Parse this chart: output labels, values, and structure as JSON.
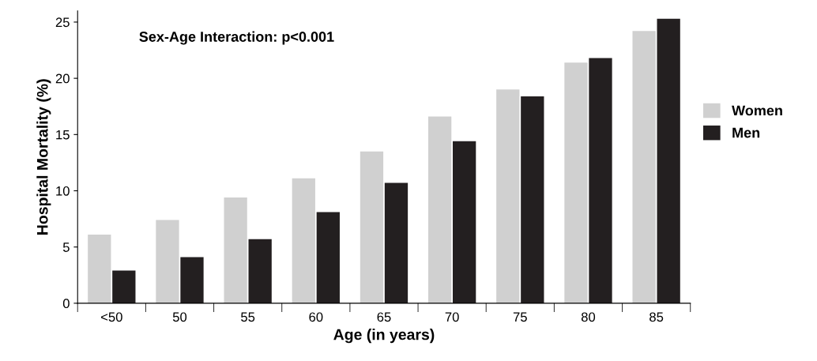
{
  "chart_data": {
    "type": "bar",
    "xlabel": "Age (in years)",
    "ylabel": "Hospital Mortality (%)",
    "categories": [
      "<50",
      "50",
      "55",
      "60",
      "65",
      "70",
      "75",
      "80",
      "85"
    ],
    "series": [
      {
        "name": "Women",
        "color": "#d0d0d0",
        "values": [
          6.1,
          7.4,
          9.4,
          11.1,
          13.5,
          16.6,
          19.0,
          21.4,
          24.2
        ]
      },
      {
        "name": "Men",
        "color": "#231f20",
        "values": [
          2.9,
          4.1,
          5.7,
          8.1,
          10.7,
          14.4,
          18.4,
          21.8,
          25.3
        ]
      }
    ],
    "ylim": [
      0,
      26
    ],
    "yticks": [
      0,
      5,
      10,
      15,
      20,
      25
    ],
    "grid": false,
    "legend": "right",
    "annotations": [
      "Sex-Age Interaction: p<0.001"
    ]
  }
}
